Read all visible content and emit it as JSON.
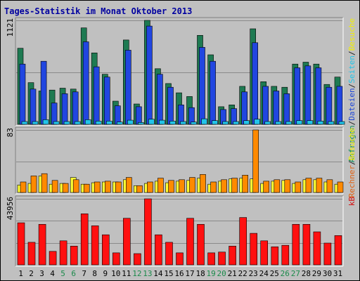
{
  "chart_data": {
    "title": "Tages-Statistik im Monat Oktober 2013",
    "days": [
      "1",
      "2",
      "3",
      "4",
      "5",
      "6",
      "7",
      "8",
      "9",
      "10",
      "11",
      "12",
      "13",
      "14",
      "15",
      "16",
      "17",
      "18",
      "19",
      "20",
      "21",
      "22",
      "23",
      "24",
      "25",
      "26",
      "27",
      "28",
      "29",
      "30",
      "31"
    ],
    "weekend_days": [
      "5",
      "6",
      "12",
      "13",
      "19",
      "20",
      "26",
      "27"
    ],
    "panels": [
      {
        "id": "top",
        "type": "bar",
        "max_label": "1121",
        "ylim": [
          0,
          1121
        ],
        "right_labels": [
          {
            "text": "Anfragen",
            "color": "#0b8a5a"
          },
          {
            "text": "/",
            "color": "#222222"
          },
          {
            "text": "Dateien",
            "color": "#1f47d8"
          },
          {
            "text": "/",
            "color": "#222222"
          },
          {
            "text": "Seiten",
            "color": "#22c4e8"
          },
          {
            "text": "/",
            "color": "#222222"
          },
          {
            "text": "Besuche",
            "color": "#f2f000"
          }
        ],
        "series": [
          {
            "name": "Anfragen",
            "color": "#1e7a52",
            "values": [
              820,
              450,
              360,
              370,
              390,
              380,
              1040,
              770,
              540,
              250,
              910,
              220,
              1121,
              600,
              440,
              340,
              300,
              960,
              750,
              190,
              210,
              410,
              1030,
              460,
              410,
              400,
              650,
              670,
              650,
              430,
              510
            ]
          },
          {
            "name": "Dateien",
            "color": "#2146e0",
            "values": [
              650,
              380,
              680,
              230,
              330,
              350,
              890,
              620,
              510,
              200,
              800,
              190,
              1060,
              540,
              400,
              210,
              180,
              830,
              680,
              160,
              170,
              350,
              880,
              410,
              360,
              330,
              610,
              630,
              610,
              400,
              410
            ]
          },
          {
            "name": "Seiten",
            "color": "#22c4e8",
            "values": [
              30,
              30,
              50,
              30,
              30,
              30,
              50,
              35,
              35,
              25,
              45,
              20,
              55,
              45,
              35,
              30,
              25,
              60,
              40,
              30,
              30,
              40,
              55,
              30,
              30,
              30,
              40,
              40,
              35,
              30,
              30
            ]
          }
        ]
      },
      {
        "id": "middle",
        "type": "bar",
        "max_label": "83",
        "ylim": [
          0,
          83
        ],
        "right_labels": [
          {
            "text": "Rechner",
            "color": "#e06010"
          },
          {
            "text": "/",
            "color": "#222222"
          },
          {
            "text": "Besuche",
            "color": "#f2f000"
          }
        ],
        "series": [
          {
            "name": "Besuche",
            "color": "#ffff33",
            "values": [
              10,
              12,
              22,
              11,
              12,
              20,
              11,
              13,
              14,
              14,
              17,
              9,
              12,
              15,
              13,
              15,
              16,
              19,
              11,
              15,
              18,
              19,
              18,
              12,
              15,
              16,
              12,
              17,
              17,
              14,
              11
            ]
          },
          {
            "name": "Rechner",
            "color": "#ff8a00",
            "values": [
              14,
              22,
              25,
              16,
              12,
              17,
              11,
              14,
              15,
              14,
              20,
              9,
              14,
              19,
              16,
              17,
              20,
              24,
              14,
              17,
              19,
              23,
              83,
              15,
              17,
              17,
              14,
              19,
              19,
              17,
              14
            ]
          }
        ]
      },
      {
        "id": "bottom",
        "type": "bar",
        "max_label": "43956",
        "ylim": [
          0,
          43956
        ],
        "right_labels": [
          {
            "text": "kB",
            "color": "#d41010"
          }
        ],
        "series": [
          {
            "name": "kB",
            "color": "#ff1010",
            "values": [
              28000,
              15000,
              27000,
              9000,
              16000,
              12500,
              34000,
              26000,
              20000,
              8000,
              31000,
              7500,
              43956,
              20000,
              15000,
              8000,
              31000,
              27000,
              8000,
              8500,
              12500,
              31500,
              21000,
              16000,
              12000,
              13000,
              27000,
              27000,
              22000,
              14500,
              19500
            ]
          }
        ]
      }
    ]
  }
}
